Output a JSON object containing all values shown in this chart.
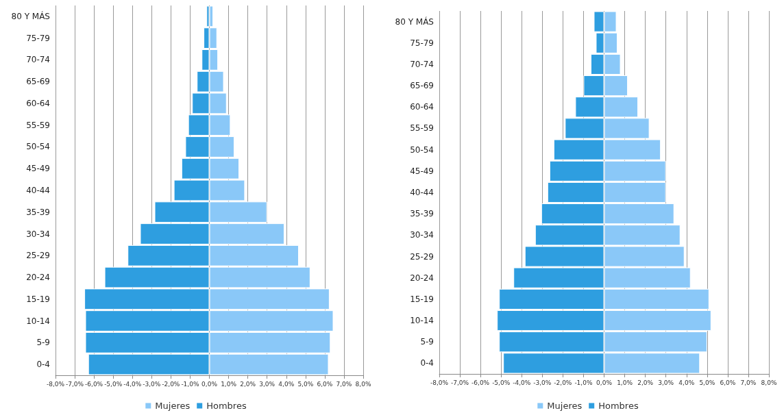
{
  "chart_data": [
    {
      "type": "bar",
      "orientation": "horizontal",
      "categories": [
        "80 Y MÁS",
        "75-79",
        "70-74",
        "65-69",
        "60-64",
        "55-59",
        "50-54",
        "45-49",
        "40-44",
        "35-39",
        "30-34",
        "25-29",
        "20-24",
        "15-19",
        "10-14",
        "5-9",
        "0-4"
      ],
      "series": [
        {
          "name": "Mujeres",
          "color": "#8ac8f8",
          "values": [
            0.2,
            0.4,
            0.45,
            0.75,
            0.9,
            1.1,
            1.3,
            1.55,
            1.85,
            3.0,
            3.9,
            4.65,
            5.25,
            6.25,
            6.45,
            6.3,
            6.2
          ]
        },
        {
          "name": "Hombres",
          "color": "#2e9ee0",
          "values": [
            -0.15,
            -0.3,
            -0.4,
            -0.65,
            -0.9,
            -1.1,
            -1.25,
            -1.45,
            -1.85,
            -2.85,
            -3.6,
            -4.25,
            -5.45,
            -6.5,
            -6.45,
            -6.45,
            -6.3
          ]
        }
      ],
      "xlim": [
        -8,
        8
      ],
      "xticks": [
        {
          "value": -8,
          "label": "-8,0%"
        },
        {
          "value": -7,
          "label": "-7,0%"
        },
        {
          "value": -6,
          "label": "-6,0%"
        },
        {
          "value": -5,
          "label": "-5,0%"
        },
        {
          "value": -4,
          "label": "-4,0%"
        },
        {
          "value": -3,
          "label": "-3,0%"
        },
        {
          "value": -2,
          "label": "-2,0%"
        },
        {
          "value": -1,
          "label": "-1,0%"
        },
        {
          "value": 0,
          "label": "0,0%"
        },
        {
          "value": 1,
          "label": "1,0%"
        },
        {
          "value": 2,
          "label": "2,0%"
        },
        {
          "value": 3,
          "label": "3,0%"
        },
        {
          "value": 4,
          "label": "4,0%"
        },
        {
          "value": 5,
          "label": "5,0%"
        },
        {
          "value": 6,
          "label": "6,0%"
        },
        {
          "value": 7,
          "label": "7,0%"
        },
        {
          "value": 8,
          "label": "8,0%"
        }
      ],
      "grid": "x",
      "legend": "bottom",
      "stacked": true
    },
    {
      "type": "bar",
      "orientation": "horizontal",
      "categories": [
        "80 Y MÁS",
        "75-79",
        "70-74",
        "65-69",
        "60-64",
        "55-59",
        "50-54",
        "45-49",
        "40-44",
        "35-39",
        "30-34",
        "25-29",
        "20-24",
        "15-19",
        "10-14",
        "5-9",
        "0-4"
      ],
      "series": [
        {
          "name": "Mujeres",
          "color": "#8ac8f8",
          "values": [
            0.6,
            0.65,
            0.8,
            1.15,
            1.65,
            2.2,
            2.75,
            3.0,
            3.0,
            3.4,
            3.7,
            3.9,
            4.2,
            5.1,
            5.2,
            5.0,
            4.65
          ]
        },
        {
          "name": "Hombres",
          "color": "#2e9ee0",
          "values": [
            -0.5,
            -0.4,
            -0.65,
            -1.0,
            -1.4,
            -1.9,
            -2.45,
            -2.65,
            -2.75,
            -3.05,
            -3.35,
            -3.85,
            -4.4,
            -5.1,
            -5.2,
            -5.1,
            -4.9
          ]
        }
      ],
      "xlim": [
        -8,
        8
      ],
      "xticks": [
        {
          "value": -8,
          "label": "-8,0%"
        },
        {
          "value": -7,
          "label": "-7,0%"
        },
        {
          "value": -6,
          "label": "-6,0%"
        },
        {
          "value": -5,
          "label": "-5,0%"
        },
        {
          "value": -4,
          "label": "-4,0%"
        },
        {
          "value": -3,
          "label": "-3,0%"
        },
        {
          "value": -2,
          "label": "-2,0%"
        },
        {
          "value": -1,
          "label": "-1,0%"
        },
        {
          "value": 0,
          "label": "0,0%"
        },
        {
          "value": 1,
          "label": "1,0%"
        },
        {
          "value": 2,
          "label": "2,0%"
        },
        {
          "value": 3,
          "label": "3,0%"
        },
        {
          "value": 4,
          "label": "4,0%"
        },
        {
          "value": 5,
          "label": "5,0%"
        },
        {
          "value": 6,
          "label": "6,0%"
        },
        {
          "value": 7,
          "label": "7,0%"
        },
        {
          "value": 8,
          "label": "8,0%"
        }
      ],
      "grid": "x",
      "legend": "bottom",
      "stacked": true
    }
  ]
}
